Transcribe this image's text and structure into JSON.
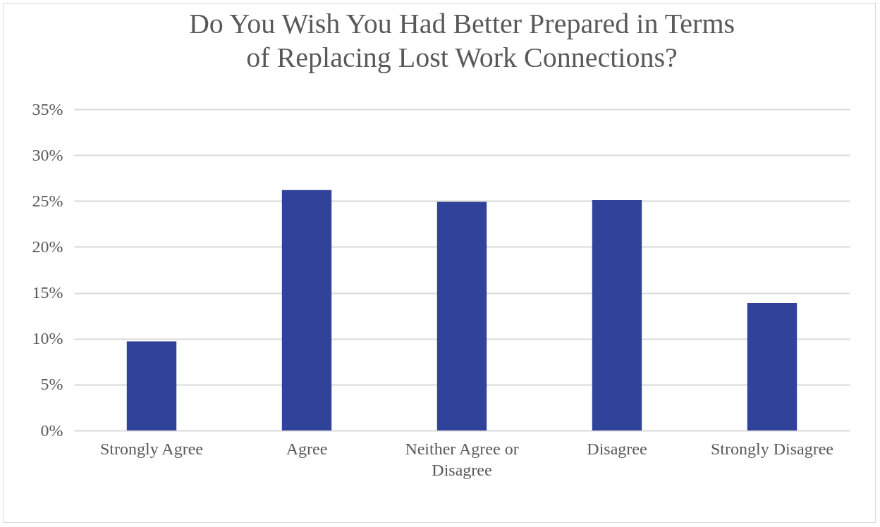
{
  "chart_data": {
    "type": "bar",
    "title": "Do You Wish You Had Better Prepared in Terms of Replacing Lost Work Connections?",
    "categories": [
      "Strongly Agree",
      "Agree",
      "Neither Agree or Disagree",
      "Disagree",
      "Strongly Disagree"
    ],
    "values": [
      9.7,
      26.2,
      24.9,
      25.1,
      13.9
    ],
    "color": "#30429a",
    "ylim": [
      0,
      35
    ],
    "yticks": [
      {
        "value": 0,
        "label": "0%"
      },
      {
        "value": 5,
        "label": "5%"
      },
      {
        "value": 10,
        "label": "10%"
      },
      {
        "value": 15,
        "label": "15%"
      },
      {
        "value": 20,
        "label": "20%"
      },
      {
        "value": 25,
        "label": "25%"
      },
      {
        "value": 30,
        "label": "30%"
      },
      {
        "value": 35,
        "label": "35%"
      }
    ],
    "grid": "y"
  }
}
